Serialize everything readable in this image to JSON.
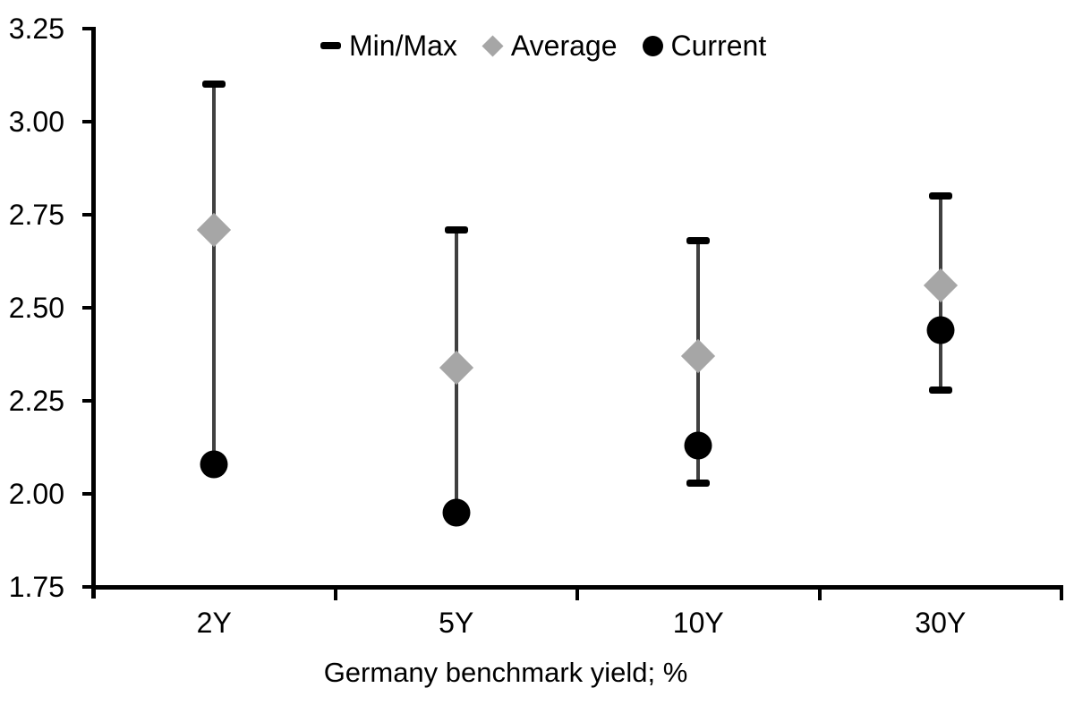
{
  "chart_data": {
    "type": "scatter",
    "subtype": "min-max-range-with-markers",
    "title": "",
    "xlabel": "Germany benchmark yield; %",
    "ylabel": "",
    "categories": [
      "2Y",
      "5Y",
      "10Y",
      "30Y"
    ],
    "series": [
      {
        "name": "Min/Max",
        "role": "range",
        "min": [
          2.08,
          1.95,
          2.03,
          2.28
        ],
        "max": [
          3.1,
          2.71,
          2.68,
          2.8
        ]
      },
      {
        "name": "Average",
        "role": "marker-diamond",
        "values": [
          2.71,
          2.34,
          2.37,
          2.56
        ]
      },
      {
        "name": "Current",
        "role": "marker-circle",
        "values": [
          2.08,
          1.95,
          2.13,
          2.44
        ]
      }
    ],
    "ylim": [
      1.75,
      3.25
    ],
    "ytick_step": 0.25,
    "ytick_labels": [
      "3.25",
      "3.00",
      "2.75",
      "2.50",
      "2.25",
      "2.00",
      "1.75"
    ],
    "grid": false,
    "legend": {
      "position": "top-center",
      "items": [
        "Min/Max",
        "Average",
        "Current"
      ]
    },
    "colors": {
      "minmax_cap": "#000000",
      "range_line": "#404040",
      "average_marker": "#a6a6a6",
      "current_marker": "#000000",
      "axis": "#000000",
      "text": "#000000",
      "background": "#ffffff"
    }
  }
}
